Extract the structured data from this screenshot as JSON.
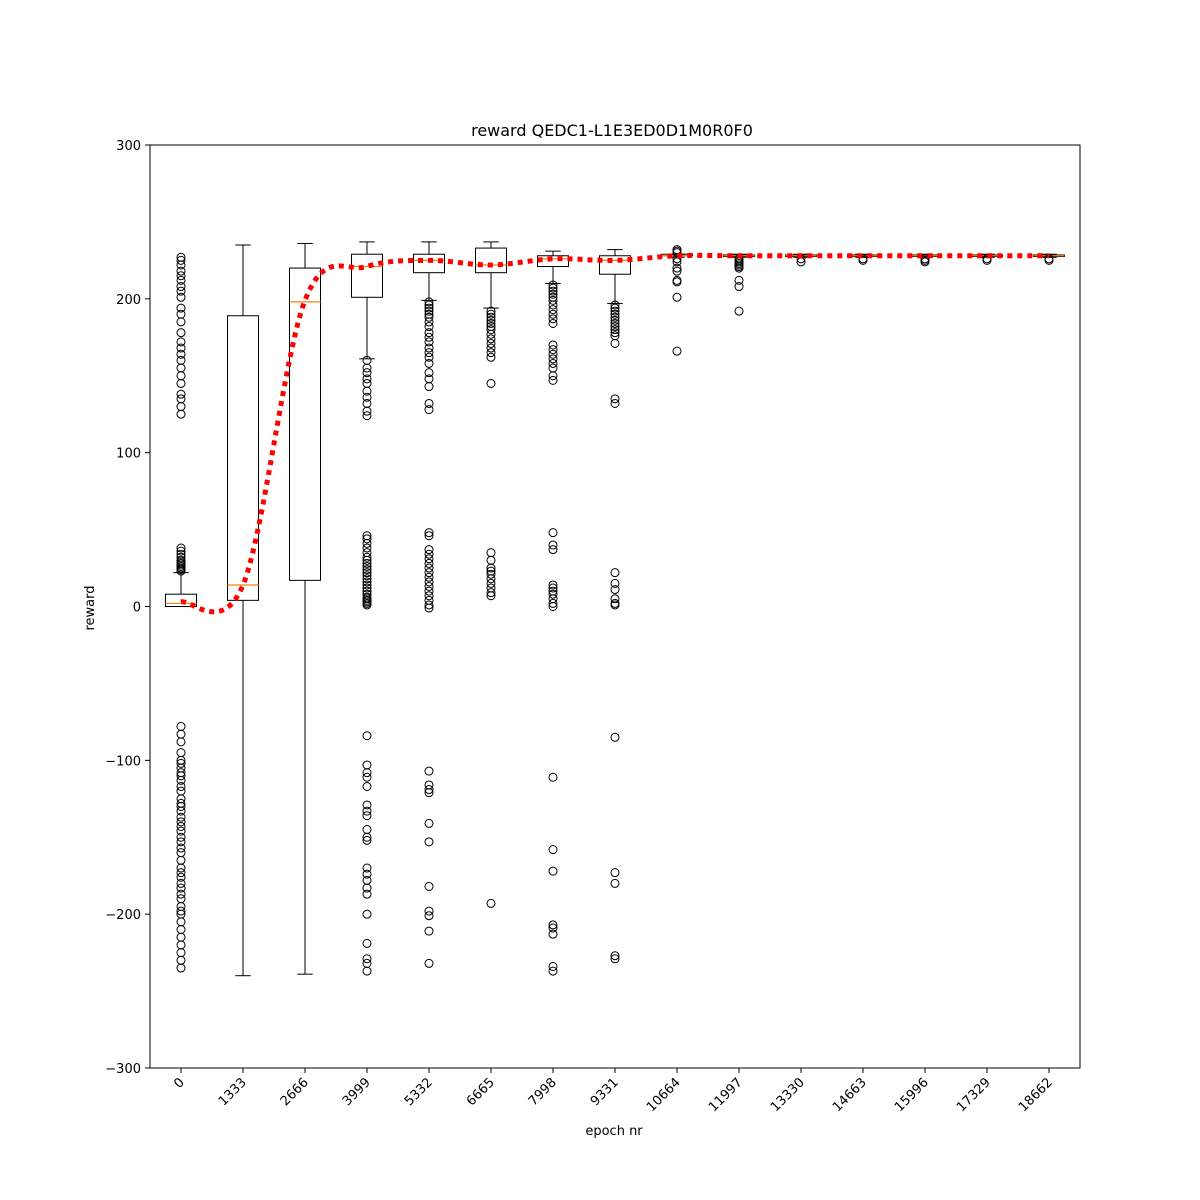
{
  "chart_data": {
    "type": "box",
    "title": "reward QEDC1-L1E3ED0D1M0R0F0",
    "xlabel": "epoch nr",
    "ylabel": "reward",
    "ylim": [
      -300,
      300
    ],
    "yticks": [
      -300,
      -200,
      -100,
      0,
      100,
      200,
      300
    ],
    "ytick_labels": [
      "−300",
      "−200",
      "−100",
      "0",
      "100",
      "200",
      "300"
    ],
    "categories": [
      "0",
      "1333",
      "2666",
      "3999",
      "5332",
      "6665",
      "7998",
      "9331",
      "10664",
      "11997",
      "13330",
      "14663",
      "15996",
      "17329",
      "18662"
    ],
    "boxes": [
      {
        "whislo": 0,
        "q1": 0,
        "med": 2,
        "q3": 8,
        "whishi": 22
      },
      {
        "whislo": -240,
        "q1": 4,
        "med": 14,
        "q3": 189,
        "whishi": 235
      },
      {
        "whislo": -239,
        "q1": 17,
        "med": 198,
        "q3": 220,
        "whishi": 236
      },
      {
        "whislo": 161,
        "q1": 201,
        "med": 221,
        "q3": 229,
        "whishi": 237
      },
      {
        "whislo": 199,
        "q1": 217,
        "med": 225,
        "q3": 229,
        "whishi": 237
      },
      {
        "whislo": 194,
        "q1": 217,
        "med": 222,
        "q3": 233,
        "whishi": 237
      },
      {
        "whislo": 210,
        "q1": 221,
        "med": 226,
        "q3": 228,
        "whishi": 231
      },
      {
        "whislo": 197,
        "q1": 216,
        "med": 225,
        "q3": 228,
        "whishi": 232
      },
      {
        "whislo": 227,
        "q1": 228,
        "med": 228,
        "q3": 229,
        "whishi": 229
      },
      {
        "whislo": 227,
        "q1": 227.5,
        "med": 228,
        "q3": 228.5,
        "whishi": 229
      },
      {
        "whislo": 227,
        "q1": 227.5,
        "med": 228,
        "q3": 228.5,
        "whishi": 229
      },
      {
        "whislo": 227,
        "q1": 227.5,
        "med": 228,
        "q3": 228.5,
        "whishi": 229
      },
      {
        "whislo": 227,
        "q1": 227.5,
        "med": 228,
        "q3": 228.5,
        "whishi": 229
      },
      {
        "whislo": 227,
        "q1": 227.5,
        "med": 228,
        "q3": 228.5,
        "whishi": 229
      },
      {
        "whislo": 227,
        "q1": 227.5,
        "med": 228,
        "q3": 228.5,
        "whishi": 229
      }
    ],
    "outliers": [
      [
        227,
        225,
        222,
        218,
        215,
        212,
        208,
        205,
        201,
        194,
        190,
        185,
        178,
        172,
        168,
        164,
        160,
        155,
        150,
        145,
        138,
        135,
        130,
        125,
        38,
        36,
        34,
        32,
        30,
        29,
        28,
        27,
        26,
        25,
        24,
        23,
        -78,
        -83,
        -88,
        -95,
        -100,
        -102,
        -105,
        -108,
        -110,
        -113,
        -117,
        -120,
        -125,
        -128,
        -130,
        -133,
        -137,
        -140,
        -143,
        -146,
        -150,
        -153,
        -157,
        -160,
        -165,
        -170,
        -173,
        -176,
        -180,
        -183,
        -187,
        -190,
        -195,
        -198,
        -200,
        -205,
        -210,
        -215,
        -220,
        -225,
        -230,
        -235
      ],
      [],
      [],
      [
        160,
        155,
        152,
        148,
        145,
        140,
        136,
        132,
        127,
        124,
        46,
        44,
        41,
        38,
        35,
        32,
        30,
        28,
        26,
        24,
        22,
        20,
        18,
        16,
        14,
        12,
        10,
        8,
        6,
        5,
        4,
        3,
        2,
        1,
        -84,
        -103,
        -108,
        -111,
        -117,
        -129,
        -133,
        -136,
        -145,
        -150,
        -152,
        -170,
        -174,
        -178,
        -183,
        -187,
        -200,
        -219,
        -229,
        -232,
        -237
      ],
      [
        198,
        196,
        194,
        192,
        190,
        188,
        185,
        182,
        178,
        175,
        172,
        168,
        165,
        162,
        158,
        152,
        148,
        143,
        132,
        128,
        48,
        46,
        37,
        34,
        31,
        28,
        25,
        22,
        19,
        16,
        13,
        10,
        7,
        4,
        1,
        -1,
        -107,
        -116,
        -119,
        -121,
        -141,
        -153,
        -182,
        -198,
        -201,
        -211,
        -232
      ],
      [
        192,
        190,
        188,
        186,
        184,
        182,
        180,
        177,
        174,
        171,
        168,
        165,
        162,
        145,
        35,
        30,
        25,
        23,
        21,
        18,
        15,
        12,
        9,
        7,
        -193
      ],
      [
        209,
        207,
        205,
        203,
        201,
        199,
        196,
        193,
        190,
        187,
        184,
        170,
        167,
        164,
        161,
        158,
        155,
        150,
        147,
        48,
        40,
        37,
        14,
        12,
        10,
        8,
        5,
        2,
        0,
        -111,
        -158,
        -172,
        -207,
        -209,
        -213,
        -234,
        -237
      ],
      [
        196,
        194,
        192,
        190,
        188,
        186,
        184,
        182,
        180,
        178,
        176,
        171,
        135,
        132,
        22,
        15,
        11,
        5,
        2,
        1,
        -85,
        -173,
        -180,
        -227,
        -229
      ],
      [
        232,
        231,
        230,
        226,
        224,
        220,
        218,
        212,
        211,
        201,
        166
      ],
      [
        226,
        225,
        224,
        223,
        222,
        221,
        220,
        212,
        208,
        192
      ],
      [
        226,
        224
      ],
      [
        226,
        225
      ],
      [
        226,
        225,
        224
      ],
      [
        226,
        225
      ],
      [
        226,
        225
      ]
    ],
    "mean_line": {
      "values": [
        3,
        14,
        199,
        221,
        225,
        222,
        226,
        225,
        228,
        228,
        228,
        228,
        228,
        228,
        228
      ],
      "color": "#ff0000",
      "style": "dotted"
    },
    "median_color": "#ff7f0e",
    "box_color": "#000000"
  }
}
